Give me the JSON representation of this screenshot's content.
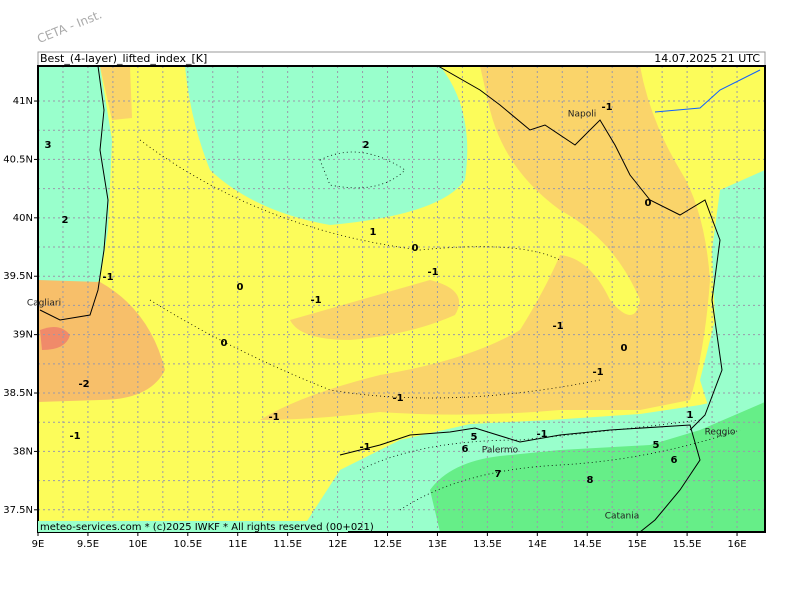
{
  "watermark": "CETA - Inst.",
  "header": {
    "title": "Best_(4-layer)_lifted_index_[K]",
    "timestamp": "14.07.2025 21 UTC"
  },
  "footer": "meteo-services.com * (c)2025 IWKF * All rights reserved (00+021)",
  "lon_lim": [
    9,
    16.28
  ],
  "lat_lim": [
    37.31,
    41.3
  ],
  "lon_ticks": [
    {
      "value": 9,
      "label": "9E"
    },
    {
      "value": 9.5,
      "label": "9.5E"
    },
    {
      "value": 10,
      "label": "10E"
    },
    {
      "value": 10.5,
      "label": "10.5E"
    },
    {
      "value": 11,
      "label": "11E"
    },
    {
      "value": 11.5,
      "label": "11.5E"
    },
    {
      "value": 12,
      "label": "12E"
    },
    {
      "value": 12.5,
      "label": "12.5E"
    },
    {
      "value": 13,
      "label": "13E"
    },
    {
      "value": 13.5,
      "label": "13.5E"
    },
    {
      "value": 14,
      "label": "14E"
    },
    {
      "value": 14.5,
      "label": "14.5E"
    },
    {
      "value": 15,
      "label": "15E"
    },
    {
      "value": 15.5,
      "label": "15.5E"
    },
    {
      "value": 16,
      "label": "16E"
    }
  ],
  "lat_ticks": [
    {
      "value": 37.5,
      "label": "37.5N"
    },
    {
      "value": 38,
      "label": "38N"
    },
    {
      "value": 38.5,
      "label": "38.5N"
    },
    {
      "value": 39,
      "label": "39N"
    },
    {
      "value": 39.5,
      "label": "39.5N"
    },
    {
      "value": 40,
      "label": "40N"
    },
    {
      "value": 40.5,
      "label": "40.5N"
    },
    {
      "value": 41,
      "label": "41N"
    }
  ],
  "cities": [
    "Napoli",
    "Cagliari",
    "Palermo",
    "Catania",
    "Reggio"
  ],
  "contour_labels": [
    3,
    2,
    2,
    1,
    0,
    -1,
    -1,
    0,
    -1,
    0,
    -1,
    0,
    -2,
    -1,
    -1,
    -1,
    -1,
    -1,
    -1,
    5,
    6,
    7,
    8,
    5,
    6,
    1,
    -1,
    0
  ]
}
